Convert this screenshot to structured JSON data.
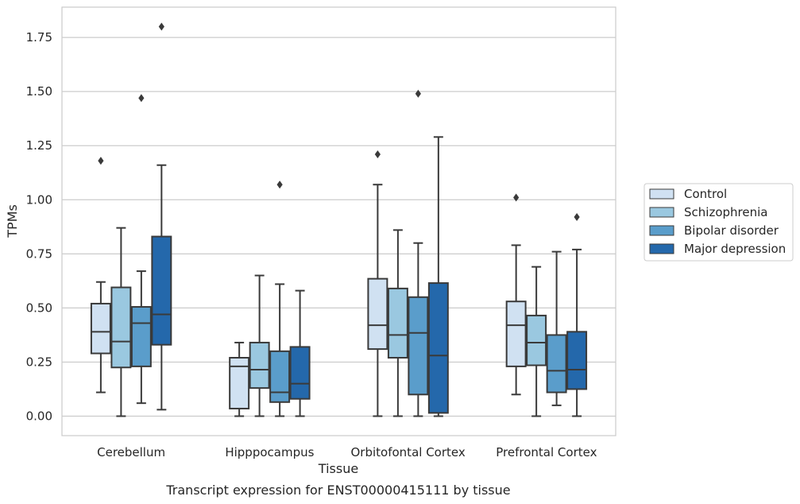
{
  "caption": "Transcript expression for ENST00000415111 by tissue",
  "chart_data": {
    "type": "box",
    "xlabel": "Tissue",
    "ylabel": "TPMs",
    "ylim": [
      -0.09,
      1.89
    ],
    "yticks": [
      "0.00",
      "0.25",
      "0.50",
      "0.75",
      "1.00",
      "1.25",
      "1.50",
      "1.75"
    ],
    "grid": "horizontal",
    "legend_position": "right",
    "categories": [
      "Cerebellum",
      "Hipppocampus",
      "Orbitofontal Cortex",
      "Prefrontal Cortex"
    ],
    "series": [
      {
        "name": "Control",
        "color": "#d0e1f2",
        "boxes": [
          {
            "whislo": 0.11,
            "q1": 0.29,
            "med": 0.39,
            "q3": 0.52,
            "whishi": 0.62,
            "fliers": [
              1.18
            ]
          },
          {
            "whislo": 0.0,
            "q1": 0.035,
            "med": 0.23,
            "q3": 0.27,
            "whishi": 0.34,
            "fliers": []
          },
          {
            "whislo": 0.0,
            "q1": 0.31,
            "med": 0.42,
            "q3": 0.635,
            "whishi": 1.07,
            "fliers": [
              1.21
            ]
          },
          {
            "whislo": 0.1,
            "q1": 0.23,
            "med": 0.42,
            "q3": 0.53,
            "whishi": 0.79,
            "fliers": [
              1.01
            ]
          }
        ]
      },
      {
        "name": "Schizophrenia",
        "color": "#9ac8e0",
        "boxes": [
          {
            "whislo": 0.0,
            "q1": 0.225,
            "med": 0.345,
            "q3": 0.595,
            "whishi": 0.87,
            "fliers": []
          },
          {
            "whislo": 0.0,
            "q1": 0.13,
            "med": 0.215,
            "q3": 0.34,
            "whishi": 0.65,
            "fliers": []
          },
          {
            "whislo": 0.0,
            "q1": 0.27,
            "med": 0.375,
            "q3": 0.59,
            "whishi": 0.86,
            "fliers": []
          },
          {
            "whislo": 0.0,
            "q1": 0.235,
            "med": 0.34,
            "q3": 0.465,
            "whishi": 0.69,
            "fliers": []
          }
        ]
      },
      {
        "name": "Bipolar disorder",
        "color": "#5a9dcb",
        "boxes": [
          {
            "whislo": 0.06,
            "q1": 0.23,
            "med": 0.43,
            "q3": 0.505,
            "whishi": 0.67,
            "fliers": [
              1.47
            ]
          },
          {
            "whislo": 0.0,
            "q1": 0.065,
            "med": 0.11,
            "q3": 0.3,
            "whishi": 0.61,
            "fliers": [
              1.07
            ]
          },
          {
            "whislo": 0.0,
            "q1": 0.1,
            "med": 0.385,
            "q3": 0.55,
            "whishi": 0.8,
            "fliers": [
              1.49
            ]
          },
          {
            "whislo": 0.05,
            "q1": 0.11,
            "med": 0.21,
            "q3": 0.375,
            "whishi": 0.76,
            "fliers": []
          }
        ]
      },
      {
        "name": "Major depression",
        "color": "#2468ab",
        "boxes": [
          {
            "whislo": 0.03,
            "q1": 0.33,
            "med": 0.47,
            "q3": 0.83,
            "whishi": 1.16,
            "fliers": [
              1.8
            ]
          },
          {
            "whislo": 0.0,
            "q1": 0.08,
            "med": 0.15,
            "q3": 0.32,
            "whishi": 0.58,
            "fliers": []
          },
          {
            "whislo": 0.0,
            "q1": 0.015,
            "med": 0.28,
            "q3": 0.615,
            "whishi": 1.29,
            "fliers": []
          },
          {
            "whislo": 0.0,
            "q1": 0.125,
            "med": 0.215,
            "q3": 0.39,
            "whishi": 0.77,
            "fliers": [
              0.92
            ]
          }
        ]
      }
    ]
  }
}
